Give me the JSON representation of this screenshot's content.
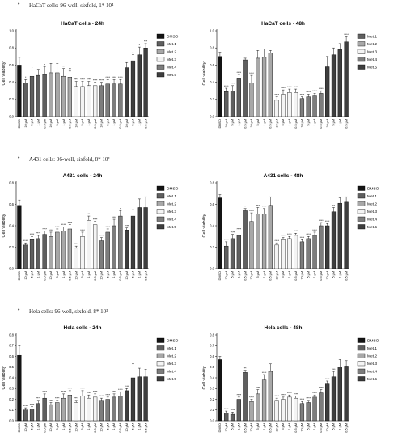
{
  "sections": [
    {
      "bullet": "•",
      "title": "HaCaT cells: 96-well, sixfold, 1* 10⁴"
    },
    {
      "bullet": "•",
      "title": "A431 cells: 96-well, sixfold, 8* 10³"
    },
    {
      "bullet": "•",
      "title": "Hela cells: 96-well, sixfold, 8* 10³"
    }
  ],
  "colors": {
    "DMSO": "#141414",
    "Met.1": "#5f5f5f",
    "Met.2": "#a8a8a8",
    "Met.3": "#f4f4f4",
    "Met.4": "#7d7d7d",
    "Met.5": "#3e3e3e"
  },
  "chart_data": [
    {
      "type": "bar",
      "title": "HaCaT cells - 24h",
      "ylabel": "Cell viability",
      "ylim": [
        0,
        1.0
      ],
      "yticks": [
        "0.0",
        "0.2",
        "0.4",
        "0.6",
        "0.8",
        "1.0"
      ],
      "legend_position": "right",
      "legend": [
        "DMSO",
        "Met.1",
        "Met.2",
        "Met.3",
        "Met.4",
        "Met.5"
      ],
      "categories": [
        "DMSO",
        "10 μM",
        "5 μM",
        "1 μM",
        "0.5 μM",
        "10 μM",
        "5 μM",
        "1 μM",
        "0.5 μM",
        "10 μM",
        "5 μM",
        "1 μM",
        "0.5 μM",
        "10 μM",
        "5 μM",
        "1 μM",
        "0.5 μM",
        "10 μM",
        "5 μM",
        "1 μM",
        "0.5 μM"
      ],
      "series_of_bar": [
        "DMSO",
        "Met.1",
        "Met.1",
        "Met.1",
        "Met.1",
        "Met.2",
        "Met.2",
        "Met.2",
        "Met.2",
        "Met.3",
        "Met.3",
        "Met.3",
        "Met.3",
        "Met.4",
        "Met.4",
        "Met.4",
        "Met.4",
        "Met.5",
        "Met.5",
        "Met.5",
        "Met.5"
      ],
      "values": [
        0.6,
        0.39,
        0.47,
        0.48,
        0.49,
        0.51,
        0.51,
        0.47,
        0.46,
        0.35,
        0.35,
        0.36,
        0.36,
        0.36,
        0.38,
        0.38,
        0.38,
        0.57,
        0.65,
        0.72,
        0.8
      ],
      "errors": [
        0.09,
        0.04,
        0.07,
        0.07,
        0.09,
        0.11,
        0.11,
        0.09,
        0.07,
        0.06,
        0.06,
        0.05,
        0.04,
        0.04,
        0.05,
        0.05,
        0.05,
        0.06,
        0.07,
        0.09,
        0.05
      ],
      "significance": [
        "",
        "*",
        "*",
        "",
        "*",
        "",
        "",
        "**",
        "**",
        "****",
        "****",
        "****",
        "****",
        "****",
        "****",
        "****",
        "****",
        "",
        "*",
        "*",
        "***"
      ]
    },
    {
      "type": "bar",
      "title": "HaCaT cells - 48h",
      "ylabel": "Cell viability",
      "ylim": [
        0,
        1.0
      ],
      "yticks": [
        "0.0",
        "0.2",
        "0.4",
        "0.6",
        "0.8",
        "1.0"
      ],
      "legend_position": "right",
      "legend": [
        "Met.1",
        "Met.2",
        "Met.3",
        "Met.4",
        "Met.5"
      ],
      "categories": [
        "DMSO",
        "10 μM",
        "5 μM",
        "1 μM",
        "0.5 μM",
        "10 μM",
        "5 μM",
        "1 μM",
        "0.5 μM",
        "10 μM",
        "5 μM",
        "1 μM",
        "0.5 μM",
        "10 μM",
        "5 μM",
        "1 μM",
        "0.5 μM",
        "10 μM",
        "5 μM",
        "1 μM",
        "0.5 μM"
      ],
      "series_of_bar": [
        "DMSO",
        "Met.1",
        "Met.1",
        "Met.1",
        "Met.1",
        "Met.2",
        "Met.2",
        "Met.2",
        "Met.2",
        "Met.3",
        "Met.3",
        "Met.3",
        "Met.3",
        "Met.4",
        "Met.4",
        "Met.4",
        "Met.4",
        "Met.5",
        "Met.5",
        "Met.5",
        "Met.5"
      ],
      "values": [
        0.7,
        0.29,
        0.3,
        0.44,
        0.66,
        0.39,
        0.68,
        0.69,
        0.74,
        0.19,
        0.26,
        0.28,
        0.28,
        0.21,
        0.23,
        0.24,
        0.27,
        0.58,
        0.72,
        0.78,
        0.87
      ],
      "errors": [
        0.05,
        0.04,
        0.06,
        0.05,
        0.02,
        0.09,
        0.09,
        0.1,
        0.03,
        0.04,
        0.05,
        0.04,
        0.04,
        0.02,
        0.03,
        0.03,
        0.03,
        0.12,
        0.08,
        0.07,
        0.06
      ],
      "significance": [
        "",
        "****",
        "****",
        "****",
        "",
        "****",
        "",
        "",
        "",
        "****",
        "****",
        "****",
        "****",
        "****",
        "****",
        "****",
        "****",
        "",
        "",
        "",
        "****"
      ]
    },
    {
      "type": "bar",
      "title": "A431 cells - 24h",
      "ylabel": "Cell viability",
      "ylim": [
        0,
        0.8
      ],
      "yticks": [
        "0.0",
        "0.2",
        "0.4",
        "0.6",
        "0.8"
      ],
      "legend_position": "right",
      "legend": [
        "DMSO",
        "Met.1",
        "Met.2",
        "Met.3",
        "Met.4",
        "Met.5"
      ],
      "categories": [
        "DMSO",
        "10 μM",
        "5 μM",
        "1 μM",
        "0.5 μM",
        "10 μM",
        "5 μM",
        "1 μM",
        "0.5 μM",
        "10 μM",
        "5 μM",
        "1 μM",
        "0.5 μM",
        "10 μM",
        "5 μM",
        "1 μM",
        "0.5 μM",
        "10 μM",
        "5 μM",
        "1 μM",
        "0.5 μM"
      ],
      "series_of_bar": [
        "DMSO",
        "Met.1",
        "Met.1",
        "Met.1",
        "Met.1",
        "Met.2",
        "Met.2",
        "Met.2",
        "Met.2",
        "Met.3",
        "Met.3",
        "Met.3",
        "Met.3",
        "Met.4",
        "Met.4",
        "Met.4",
        "Met.4",
        "Met.5",
        "Met.5",
        "Met.5",
        "Met.5"
      ],
      "values": [
        0.59,
        0.22,
        0.27,
        0.28,
        0.32,
        0.3,
        0.34,
        0.35,
        0.37,
        0.19,
        0.3,
        0.45,
        0.41,
        0.26,
        0.34,
        0.4,
        0.49,
        0.36,
        0.49,
        0.57,
        0.57
      ],
      "errors": [
        0.05,
        0.02,
        0.03,
        0.03,
        0.03,
        0.04,
        0.03,
        0.04,
        0.04,
        0.02,
        0.04,
        0.04,
        0.03,
        0.03,
        0.03,
        0.06,
        0.05,
        0.02,
        0.06,
        0.08,
        0.1
      ],
      "significance": [
        "",
        "****",
        "****",
        "****",
        "****",
        "****",
        "****",
        "****",
        "****",
        "****",
        "****",
        "**",
        "****",
        "****",
        "****",
        "****",
        "*",
        "****",
        "",
        "",
        ""
      ]
    },
    {
      "type": "bar",
      "title": "A431 cells - 48h",
      "ylabel": "Cell viability",
      "ylim": [
        0,
        0.8
      ],
      "yticks": [
        "0.0",
        "0.2",
        "0.4",
        "0.6",
        "0.8"
      ],
      "legend_position": "right",
      "legend": [
        "DMSO",
        "Met.1",
        "Met.2",
        "Met.3",
        "Met.4",
        "Met.5"
      ],
      "categories": [
        "DMSO",
        "10 μM",
        "5 μM",
        "1 μM",
        "0.5 μM",
        "10 μM",
        "5 μM",
        "1 μM",
        "0.5 μM",
        "10 μM",
        "5 μM",
        "1 μM",
        "0.5 μM",
        "10 μM",
        "5 μM",
        "1 μM",
        "0.5 μM",
        "10 μM",
        "5 μM",
        "1 μM",
        "0.5 μM"
      ],
      "series_of_bar": [
        "DMSO",
        "Met.1",
        "Met.1",
        "Met.1",
        "Met.1",
        "Met.2",
        "Met.2",
        "Met.2",
        "Met.2",
        "Met.3",
        "Met.3",
        "Met.3",
        "Met.3",
        "Met.4",
        "Met.4",
        "Met.4",
        "Met.4",
        "Met.5",
        "Met.5",
        "Met.5",
        "Met.5"
      ],
      "values": [
        0.66,
        0.21,
        0.28,
        0.31,
        0.54,
        0.44,
        0.51,
        0.51,
        0.59,
        0.22,
        0.27,
        0.28,
        0.31,
        0.25,
        0.28,
        0.31,
        0.4,
        0.4,
        0.53,
        0.61,
        0.62
      ],
      "errors": [
        0.03,
        0.04,
        0.04,
        0.04,
        0.02,
        0.08,
        0.06,
        0.05,
        0.08,
        0.02,
        0.02,
        0.02,
        0.02,
        0.02,
        0.02,
        0.03,
        0.03,
        0.02,
        0.04,
        0.05,
        0.05
      ],
      "significance": [
        "",
        "****",
        "****",
        "****",
        "*",
        "****",
        "***",
        "****",
        "",
        "****",
        "****",
        "****",
        "****",
        "****",
        "****",
        "****",
        "****",
        "****",
        "**",
        "",
        ""
      ]
    },
    {
      "type": "bar",
      "title": "Hela cells - 24h",
      "ylabel": "Cell viability",
      "ylim": [
        0,
        0.8
      ],
      "yticks": [
        "0.0",
        "0.1",
        "0.2",
        "0.3",
        "0.4",
        "0.5",
        "0.6",
        "0.7",
        "0.8"
      ],
      "legend_position": "right",
      "legend": [
        "DMSO",
        "Met.1",
        "Met.2",
        "Met.3",
        "Met.4",
        "Met.5"
      ],
      "categories": [
        "DMSO",
        "10 μM",
        "5 μM",
        "1 μM",
        "0.5 μM",
        "10 μM",
        "5 μM",
        "1 μM",
        "0.5 μM",
        "10 μM",
        "5 μM",
        "1 μM",
        "0.5 μM",
        "10 μM",
        "5 μM",
        "1 μM",
        "0.5 μM",
        "10 μM",
        "5 μM",
        "1 μM",
        "0.5 μM"
      ],
      "series_of_bar": [
        "DMSO",
        "Met.1",
        "Met.1",
        "Met.1",
        "Met.1",
        "Met.2",
        "Met.2",
        "Met.2",
        "Met.2",
        "Met.3",
        "Met.3",
        "Met.3",
        "Met.3",
        "Met.4",
        "Met.4",
        "Met.4",
        "Met.4",
        "Met.5",
        "Met.5",
        "Met.5",
        "Met.5"
      ],
      "values": [
        0.61,
        0.1,
        0.11,
        0.16,
        0.21,
        0.15,
        0.17,
        0.21,
        0.24,
        0.17,
        0.23,
        0.21,
        0.22,
        0.19,
        0.2,
        0.22,
        0.23,
        0.28,
        0.4,
        0.41,
        0.41
      ],
      "errors": [
        0.09,
        0.02,
        0.02,
        0.03,
        0.04,
        0.02,
        0.02,
        0.04,
        0.04,
        0.02,
        0.05,
        0.03,
        0.03,
        0.02,
        0.02,
        0.03,
        0.04,
        0.02,
        0.13,
        0.08,
        0.07
      ],
      "significance": [
        "",
        "****",
        "****",
        "****",
        "****",
        "****",
        "****",
        "****",
        "****",
        "****",
        "****",
        "****",
        "****",
        "****",
        "****",
        "****",
        "****",
        "****",
        "",
        "",
        ""
      ]
    },
    {
      "type": "bar",
      "title": "Hela cells - 48h",
      "ylabel": "Cell viability",
      "ylim": [
        0,
        0.8
      ],
      "yticks": [
        "0.0",
        "0.1",
        "0.2",
        "0.3",
        "0.4",
        "0.5",
        "0.6",
        "0.7",
        "0.8"
      ],
      "legend_position": "right",
      "legend": [
        "DMSO",
        "Met.1",
        "Met.2",
        "Met.3",
        "Met.4",
        "Met.5"
      ],
      "categories": [
        "DMSO",
        "10 μM",
        "5 μM",
        "1 μM",
        "0.5 μM",
        "10 μM",
        "5 μM",
        "1 μM",
        "0.5 μM",
        "10 μM",
        "5 μM",
        "1 μM",
        "0.5 μM",
        "10 μM",
        "5 μM",
        "1 μM",
        "0.5 μM",
        "10 μM",
        "5 μM",
        "1 μM",
        "0.5 μM"
      ],
      "series_of_bar": [
        "DMSO",
        "Met.1",
        "Met.1",
        "Met.1",
        "Met.1",
        "Met.2",
        "Met.2",
        "Met.2",
        "Met.2",
        "Met.3",
        "Met.3",
        "Met.3",
        "Met.3",
        "Met.4",
        "Met.4",
        "Met.4",
        "Met.4",
        "Met.5",
        "Met.5",
        "Met.5",
        "Met.5"
      ],
      "values": [
        0.57,
        0.07,
        0.06,
        0.2,
        0.45,
        0.18,
        0.25,
        0.38,
        0.46,
        0.19,
        0.2,
        0.22,
        0.21,
        0.16,
        0.17,
        0.22,
        0.26,
        0.35,
        0.41,
        0.5,
        0.51
      ],
      "errors": [
        0.03,
        0.02,
        0.02,
        0.02,
        0.02,
        0.02,
        0.04,
        0.05,
        0.07,
        0.02,
        0.02,
        0.02,
        0.02,
        0.02,
        0.02,
        0.02,
        0.03,
        0.02,
        0.05,
        0.07,
        0.05
      ],
      "significance": [
        "",
        "****",
        "****",
        "****",
        "**",
        "****",
        "****",
        "****",
        "",
        "****",
        "****",
        "****",
        "****",
        "****",
        "****",
        "****",
        "****",
        "****",
        "***",
        "",
        ""
      ]
    }
  ]
}
